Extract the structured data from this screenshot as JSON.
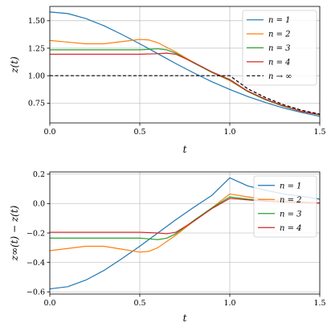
{
  "colors": {
    "n1": "#1f77b4",
    "n2": "#ff7f0e",
    "n3": "#2ca02c",
    "n4": "#d62728",
    "ninf": "#000000",
    "grid": "#b0b0b0"
  },
  "chart_data": [
    {
      "type": "line",
      "xlabel": "t",
      "ylabel": "z(t)",
      "xlim": [
        0,
        1.5
      ],
      "ylim": [
        0.57,
        1.63
      ],
      "xticks": [
        0.0,
        0.5,
        1.0,
        1.5
      ],
      "xtick_labels": [
        "0.0",
        "0.5",
        "1.0",
        "1.5"
      ],
      "yticks": [
        0.75,
        1.0,
        1.25,
        1.5
      ],
      "ytick_labels": [
        "0.75",
        "1.00",
        "1.25",
        "1.50"
      ],
      "grid": true,
      "legend_position": "top-right",
      "series": [
        {
          "name": "n = 1",
          "color_key": "n1",
          "dash": "solid",
          "x": [
            0,
            0.1,
            0.2,
            0.3,
            0.4,
            0.5,
            0.6,
            0.7,
            0.8,
            0.9,
            1.0,
            1.1,
            1.2,
            1.3,
            1.4,
            1.5
          ],
          "y": [
            1.58,
            1.565,
            1.52,
            1.455,
            1.375,
            1.29,
            1.2,
            1.11,
            1.025,
            0.945,
            0.875,
            0.81,
            0.755,
            0.705,
            0.665,
            0.63
          ]
        },
        {
          "name": "n = 2",
          "color_key": "n2",
          "dash": "solid",
          "x": [
            0,
            0.1,
            0.2,
            0.3,
            0.4,
            0.5,
            0.55,
            0.6,
            0.7,
            0.8,
            0.9,
            1.0,
            1.1,
            1.2,
            1.3,
            1.4,
            1.5
          ],
          "y": [
            1.32,
            1.305,
            1.29,
            1.29,
            1.31,
            1.33,
            1.325,
            1.3,
            1.215,
            1.12,
            1.03,
            0.955,
            0.855,
            0.78,
            0.72,
            0.675,
            0.645
          ]
        },
        {
          "name": "n = 3",
          "color_key": "n3",
          "dash": "solid",
          "x": [
            0,
            0.1,
            0.2,
            0.3,
            0.4,
            0.5,
            0.55,
            0.6,
            0.65,
            0.7,
            0.8,
            0.9,
            1.0,
            1.1,
            1.2,
            1.3,
            1.4,
            1.5
          ],
          "y": [
            1.235,
            1.235,
            1.235,
            1.235,
            1.235,
            1.235,
            1.24,
            1.245,
            1.235,
            1.205,
            1.115,
            1.03,
            0.96,
            0.855,
            0.78,
            0.72,
            0.675,
            0.645
          ]
        },
        {
          "name": "n = 4",
          "color_key": "n4",
          "dash": "solid",
          "x": [
            0,
            0.1,
            0.2,
            0.3,
            0.4,
            0.5,
            0.6,
            0.65,
            0.7,
            0.8,
            0.9,
            1.0,
            1.1,
            1.2,
            1.3,
            1.4,
            1.5
          ],
          "y": [
            1.195,
            1.195,
            1.195,
            1.195,
            1.195,
            1.195,
            1.2,
            1.205,
            1.195,
            1.12,
            1.035,
            0.965,
            0.86,
            0.785,
            0.725,
            0.675,
            0.645
          ]
        },
        {
          "name": "n → ∞",
          "color_key": "ninf",
          "dash": "dashed",
          "x": [
            0,
            1.0,
            1.1,
            1.2,
            1.3,
            1.4,
            1.5
          ],
          "y": [
            1.0,
            1.0,
            0.88,
            0.8,
            0.735,
            0.685,
            0.65
          ]
        }
      ]
    },
    {
      "type": "line",
      "xlabel": "t",
      "ylabel": "z∞(t) − z(t)",
      "xlim": [
        0,
        1.5
      ],
      "ylim": [
        -0.615,
        0.215
      ],
      "xticks": [
        0.0,
        0.5,
        1.0,
        1.5
      ],
      "xtick_labels": [
        "0.0",
        "0.5",
        "1.0",
        "1.5"
      ],
      "yticks": [
        -0.6,
        -0.4,
        -0.2,
        0.0,
        0.2
      ],
      "ytick_labels": [
        "−0.6",
        "−0.4",
        "−0.2",
        "0.0",
        "0.2"
      ],
      "grid": true,
      "legend_position": "top-right",
      "series": [
        {
          "name": "n = 1",
          "color_key": "n1",
          "dash": "solid",
          "x": [
            0,
            0.1,
            0.2,
            0.3,
            0.4,
            0.5,
            0.6,
            0.7,
            0.8,
            0.9,
            1.0,
            1.1,
            1.2,
            1.3,
            1.4,
            1.5
          ],
          "y": [
            -0.58,
            -0.565,
            -0.52,
            -0.455,
            -0.375,
            -0.29,
            -0.2,
            -0.11,
            -0.025,
            0.055,
            0.175,
            0.12,
            0.09,
            0.065,
            0.05,
            0.03
          ]
        },
        {
          "name": "n = 2",
          "color_key": "n2",
          "dash": "solid",
          "x": [
            0,
            0.1,
            0.2,
            0.3,
            0.4,
            0.5,
            0.55,
            0.6,
            0.7,
            0.8,
            0.9,
            1.0,
            1.1,
            1.2,
            1.3,
            1.4,
            1.5
          ],
          "y": [
            -0.32,
            -0.305,
            -0.29,
            -0.29,
            -0.31,
            -0.33,
            -0.325,
            -0.3,
            -0.215,
            -0.12,
            -0.03,
            0.065,
            0.045,
            0.03,
            0.02,
            0.012,
            0.005
          ]
        },
        {
          "name": "n = 3",
          "color_key": "n3",
          "dash": "solid",
          "x": [
            0,
            0.1,
            0.2,
            0.3,
            0.4,
            0.5,
            0.55,
            0.6,
            0.65,
            0.7,
            0.8,
            0.9,
            1.0,
            1.1,
            1.2,
            1.3,
            1.4,
            1.5
          ],
          "y": [
            -0.235,
            -0.235,
            -0.235,
            -0.235,
            -0.235,
            -0.235,
            -0.24,
            -0.245,
            -0.235,
            -0.205,
            -0.115,
            -0.03,
            0.045,
            0.03,
            0.02,
            0.012,
            0.006,
            0.003
          ]
        },
        {
          "name": "n = 4",
          "color_key": "n4",
          "dash": "solid",
          "x": [
            0,
            0.1,
            0.2,
            0.3,
            0.4,
            0.5,
            0.6,
            0.65,
            0.7,
            0.8,
            0.9,
            1.0,
            1.1,
            1.2,
            1.3,
            1.4,
            1.5
          ],
          "y": [
            -0.195,
            -0.195,
            -0.195,
            -0.195,
            -0.195,
            -0.195,
            -0.2,
            -0.205,
            -0.195,
            -0.12,
            -0.035,
            0.035,
            0.025,
            0.015,
            0.01,
            0.006,
            0.003
          ]
        }
      ]
    }
  ]
}
